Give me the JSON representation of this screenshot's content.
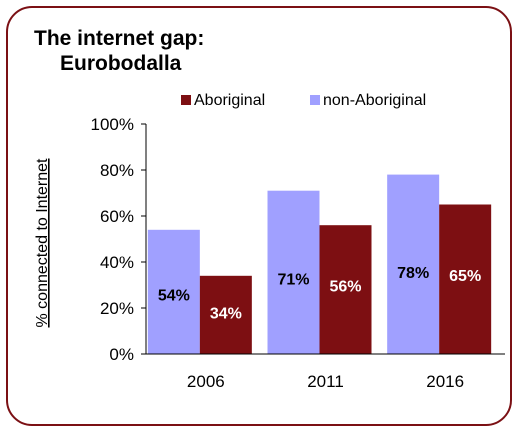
{
  "title_line1": "The internet gap:",
  "title_line2": "Eurobodalla",
  "colors": {
    "aboriginal": "#7d0f12",
    "non_aboriginal": "#a0a0ff",
    "frame": "#7b1014"
  },
  "chart_data": {
    "type": "bar",
    "title": "The internet gap: Eurobodalla",
    "categories": [
      "2006",
      "2011",
      "2016"
    ],
    "series": [
      {
        "name": "non-Aboriginal",
        "values": [
          54,
          71,
          78
        ],
        "labels": [
          "54%",
          "71%",
          "78%"
        ]
      },
      {
        "name": "Aboriginal",
        "values": [
          34,
          56,
          65
        ],
        "labels": [
          "34%",
          "56%",
          "65%"
        ]
      }
    ],
    "ylabel": "% connected to Internet",
    "xlabel": "",
    "ylim": [
      0,
      100
    ],
    "yticks": [
      "0%",
      "20%",
      "40%",
      "60%",
      "80%",
      "100%"
    ],
    "legend": [
      "Aboriginal",
      "non-Aboriginal"
    ],
    "legend_position": "top",
    "grid": false
  }
}
